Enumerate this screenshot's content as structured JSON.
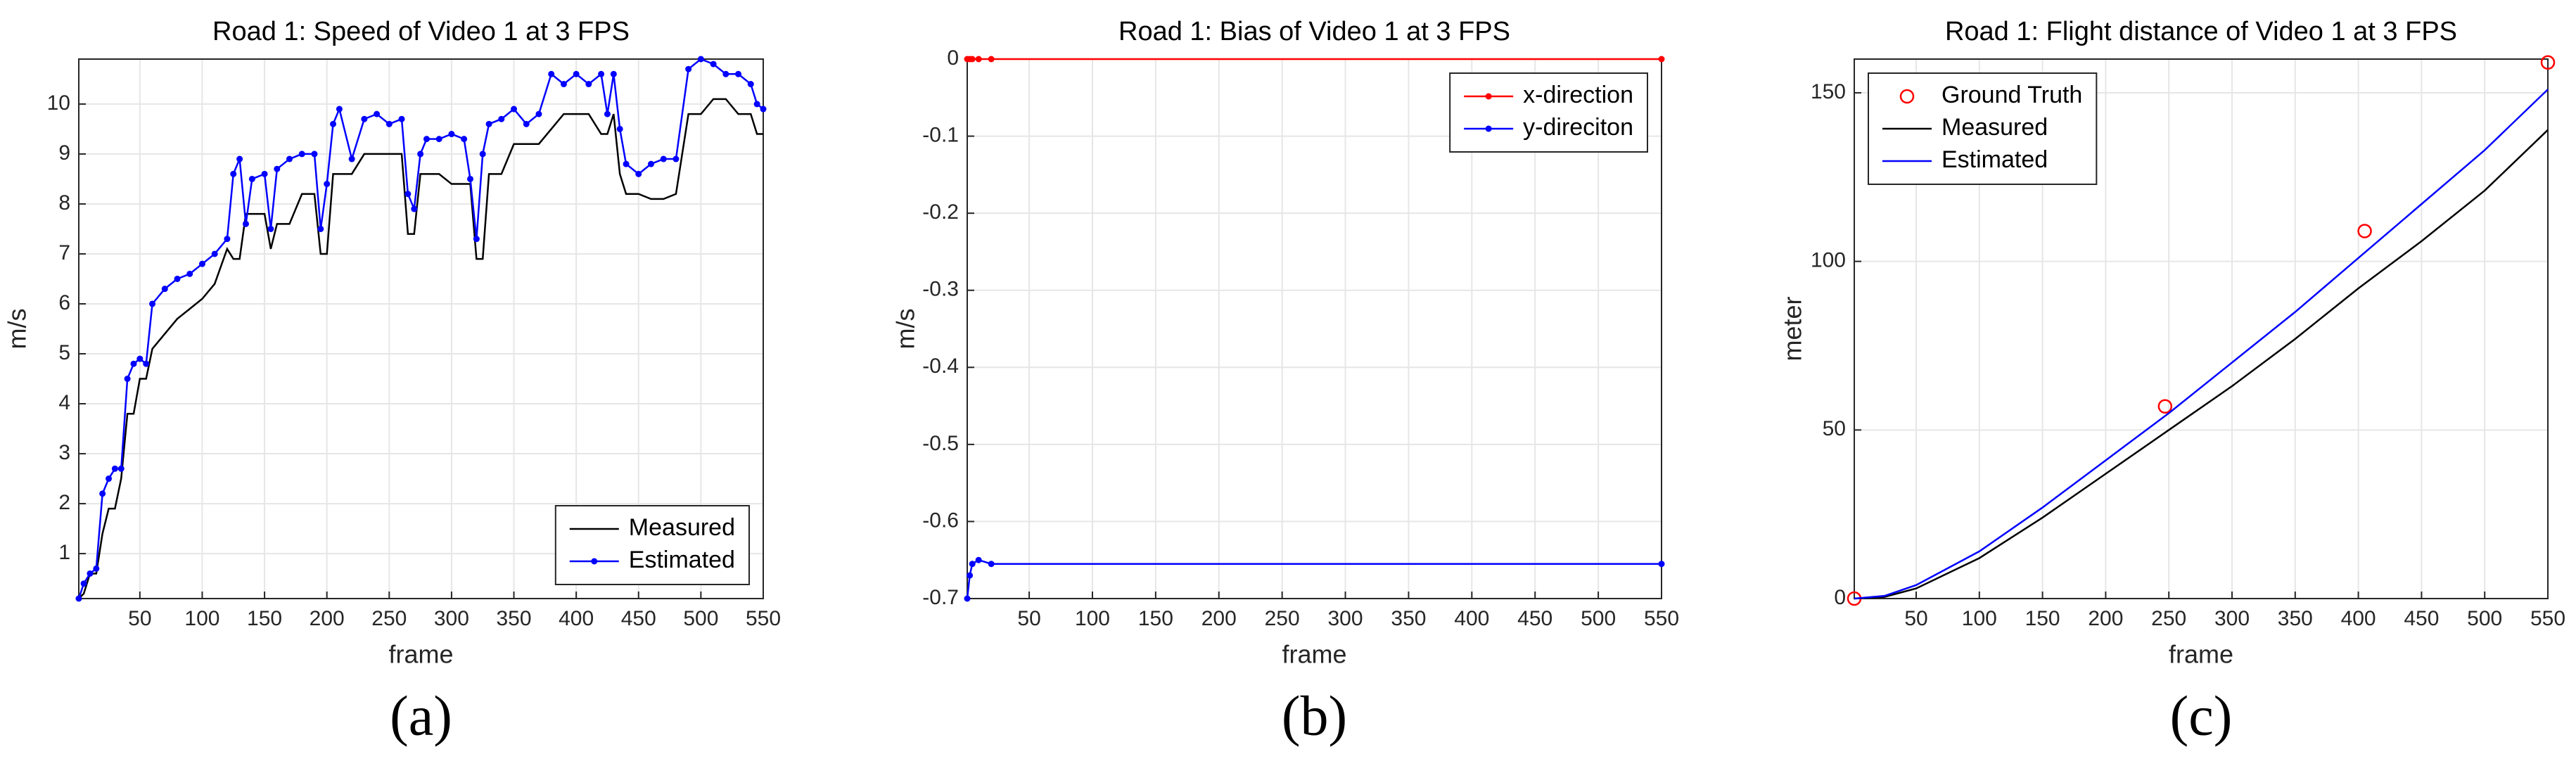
{
  "chart_data": [
    {
      "type": "line",
      "title": "Road 1: Speed of Video 1 at 3 FPS",
      "xlabel": "frame",
      "ylabel": "m/s",
      "caption": "(a)",
      "xlim": [
        1,
        550
      ],
      "ylim": [
        0.1,
        10.9
      ],
      "xticks": [
        50,
        100,
        150,
        200,
        250,
        300,
        350,
        400,
        450,
        500,
        550
      ],
      "yticks": [
        1,
        2,
        3,
        4,
        5,
        6,
        7,
        8,
        9,
        10
      ],
      "grid": true,
      "legend": "lower right",
      "x": [
        1,
        5,
        10,
        15,
        20,
        25,
        30,
        35,
        40,
        45,
        50,
        55,
        60,
        70,
        80,
        90,
        100,
        110,
        120,
        125,
        130,
        135,
        140,
        150,
        155,
        160,
        170,
        180,
        190,
        195,
        200,
        205,
        210,
        220,
        230,
        240,
        250,
        260,
        265,
        270,
        275,
        280,
        290,
        300,
        310,
        315,
        320,
        325,
        330,
        340,
        350,
        360,
        370,
        380,
        390,
        400,
        410,
        420,
        425,
        430,
        435,
        440,
        450,
        460,
        470,
        480,
        490,
        500,
        510,
        520,
        530,
        540,
        545,
        550
      ],
      "series": [
        {
          "name": "Measured",
          "color": "#000000",
          "marker": false,
          "values": [
            0.1,
            0.2,
            0.6,
            0.6,
            1.4,
            1.9,
            1.9,
            2.5,
            3.8,
            3.8,
            4.5,
            4.5,
            5.1,
            5.4,
            5.7,
            5.9,
            6.1,
            6.4,
            7.1,
            6.9,
            6.9,
            7.8,
            7.8,
            7.8,
            7.1,
            7.6,
            7.6,
            8.2,
            8.2,
            7.0,
            7.0,
            8.6,
            8.6,
            8.6,
            9.0,
            9.0,
            9.0,
            9.0,
            7.4,
            7.4,
            8.6,
            8.6,
            8.6,
            8.4,
            8.4,
            8.4,
            6.9,
            6.9,
            8.6,
            8.6,
            9.2,
            9.2,
            9.2,
            9.5,
            9.8,
            9.8,
            9.8,
            9.4,
            9.4,
            9.8,
            8.6,
            8.2,
            8.2,
            8.1,
            8.1,
            8.2,
            9.8,
            9.8,
            10.1,
            10.1,
            9.8,
            9.8,
            9.4,
            9.4
          ]
        },
        {
          "name": "Estimated",
          "color": "#0000ff",
          "marker": true,
          "values": [
            0.1,
            0.4,
            0.6,
            0.7,
            2.2,
            2.5,
            2.7,
            2.7,
            4.5,
            4.8,
            4.9,
            4.8,
            6.0,
            6.3,
            6.5,
            6.6,
            6.8,
            7.0,
            7.3,
            8.6,
            8.9,
            7.6,
            8.5,
            8.6,
            7.5,
            8.7,
            8.9,
            9.0,
            9.0,
            7.5,
            8.4,
            9.6,
            9.9,
            8.9,
            9.7,
            9.8,
            9.6,
            9.7,
            8.2,
            7.9,
            9.0,
            9.3,
            9.3,
            9.4,
            9.3,
            8.5,
            7.3,
            9.0,
            9.6,
            9.7,
            9.9,
            9.6,
            9.8,
            10.6,
            10.4,
            10.6,
            10.4,
            10.6,
            9.8,
            10.6,
            9.5,
            8.8,
            8.6,
            8.8,
            8.9,
            8.9,
            10.7,
            10.9,
            10.8,
            10.6,
            10.6,
            10.4,
            10.0,
            9.9
          ]
        }
      ]
    },
    {
      "type": "line",
      "title": "Road 1: Bias of Video 1 at 3 FPS",
      "xlabel": "frame",
      "ylabel": "m/s",
      "caption": "(b)",
      "xlim": [
        1,
        550
      ],
      "ylim": [
        -0.7,
        0
      ],
      "xticks": [
        50,
        100,
        150,
        200,
        250,
        300,
        350,
        400,
        450,
        500,
        550
      ],
      "yticks": [
        -0.7,
        -0.6,
        -0.5,
        -0.4,
        -0.3,
        -0.2,
        -0.1,
        0
      ],
      "grid": true,
      "legend": "upper right",
      "x": [
        1,
        3,
        5,
        10,
        20,
        550
      ],
      "series": [
        {
          "name": "x-direction",
          "color": "#ff0000",
          "marker": true,
          "values": [
            0,
            0,
            0,
            0,
            0,
            0
          ]
        },
        {
          "name": "y-direciton",
          "color": "#0000ff",
          "marker": true,
          "values": [
            -0.7,
            -0.67,
            -0.655,
            -0.65,
            -0.655,
            -0.655
          ]
        }
      ]
    },
    {
      "type": "line",
      "title": "Road 1: Flight distance of Video 1 at 3 FPS",
      "xlabel": "frame",
      "ylabel": "meter",
      "caption": "(c)",
      "xlim": [
        1,
        550
      ],
      "ylim": [
        0,
        160
      ],
      "xticks": [
        50,
        100,
        150,
        200,
        250,
        300,
        350,
        400,
        450,
        500,
        550
      ],
      "yticks": [
        0,
        50,
        100,
        150
      ],
      "grid": true,
      "legend": "upper left",
      "series": [
        {
          "name": "Ground Truth",
          "type": "scatter",
          "color": "#ff0000",
          "x": [
            1,
            247,
            405,
            550
          ],
          "values": [
            0,
            57,
            109,
            159
          ]
        },
        {
          "name": "Measured",
          "color": "#000000",
          "marker": false,
          "x": [
            1,
            25,
            50,
            100,
            150,
            200,
            250,
            300,
            350,
            400,
            450,
            500,
            550
          ],
          "values": [
            0,
            0.5,
            3,
            12,
            24,
            37,
            50,
            63,
            77,
            92,
            106,
            121,
            139
          ]
        },
        {
          "name": "Estimated",
          "color": "#0000ff",
          "marker": false,
          "x": [
            1,
            25,
            50,
            100,
            150,
            200,
            250,
            300,
            350,
            400,
            450,
            500,
            550
          ],
          "values": [
            0,
            0.8,
            4,
            14,
            27,
            41,
            55,
            70,
            85,
            101,
            117,
            133,
            151
          ]
        }
      ]
    }
  ]
}
